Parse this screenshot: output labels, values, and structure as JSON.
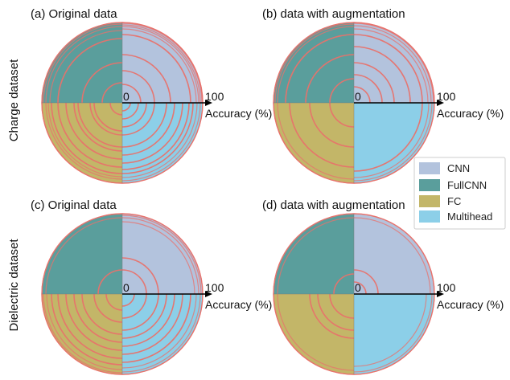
{
  "figure": {
    "row_labels": [
      "Charge dataset",
      "Dielectric dataset"
    ]
  },
  "legend": {
    "items": [
      {
        "label": "CNN",
        "color": "#b3c3dd"
      },
      {
        "label": "FullCNN",
        "color": "#5a9e9c"
      },
      {
        "label": "FC",
        "color": "#c3b668"
      },
      {
        "label": "Multihead",
        "color": "#8ccfe8"
      }
    ]
  },
  "axis": {
    "zero_label": "0",
    "max_label": "100",
    "axis_label": "Accuracy (%)"
  },
  "ring_color": "#e8726c",
  "chart_data": [
    {
      "type": "polar-quadrant",
      "title": "(a) Original data",
      "row": "Charge dataset",
      "rlim": [
        0,
        100
      ],
      "series": [
        {
          "name": "CNN",
          "values": [
            23,
            40,
            60,
            85,
            92,
            95,
            97,
            99,
            100
          ]
        },
        {
          "name": "FullCNN",
          "values": [
            25,
            50,
            80,
            90,
            95,
            98,
            100
          ]
        },
        {
          "name": "FC",
          "values": [
            15,
            35,
            40,
            55,
            60,
            70,
            80,
            88,
            92,
            95,
            100
          ]
        },
        {
          "name": "Multihead",
          "values": [
            10,
            20,
            30,
            40,
            55,
            65,
            75,
            83,
            88,
            93,
            97,
            100
          ]
        }
      ]
    },
    {
      "type": "polar-quadrant",
      "title": "(b) data with augmentation",
      "row": "Charge dataset",
      "rlim": [
        0,
        100
      ],
      "series": [
        {
          "name": "CNN",
          "values": [
            20,
            35,
            50,
            70,
            85,
            92,
            96,
            99,
            100
          ]
        },
        {
          "name": "FullCNN",
          "values": [
            30,
            60,
            85,
            95,
            98,
            100
          ]
        },
        {
          "name": "FC",
          "values": [
            30,
            55,
            80,
            95,
            100
          ]
        },
        {
          "name": "Multihead",
          "values": [
            85,
            93,
            97,
            100
          ]
        }
      ]
    },
    {
      "type": "polar-quadrant",
      "title": "(c) Original data",
      "row": "Dielectric dataset",
      "rlim": [
        0,
        100
      ],
      "series": [
        {
          "name": "CNN",
          "values": [
            30,
            45,
            90,
            95,
            98,
            100
          ]
        },
        {
          "name": "FullCNN",
          "values": [
            30,
            95,
            100
          ]
        },
        {
          "name": "FC",
          "values": [
            20,
            35,
            50,
            60,
            70,
            80,
            88,
            94,
            98,
            100
          ]
        },
        {
          "name": "Multihead",
          "values": [
            15,
            30,
            45,
            55,
            65,
            75,
            85,
            92,
            97,
            100
          ]
        }
      ]
    },
    {
      "type": "polar-quadrant",
      "title": "(d) data with augmentation",
      "row": "Dielectric dataset",
      "rlim": [
        0,
        100
      ],
      "series": [
        {
          "name": "CNN",
          "values": [
            15,
            30,
            95,
            100
          ]
        },
        {
          "name": "FullCNN",
          "values": [
            25,
            95,
            100
          ]
        },
        {
          "name": "FC",
          "values": [
            30,
            45,
            55,
            95,
            100
          ]
        },
        {
          "name": "Multihead",
          "values": [
            90,
            97,
            100
          ]
        }
      ]
    }
  ]
}
